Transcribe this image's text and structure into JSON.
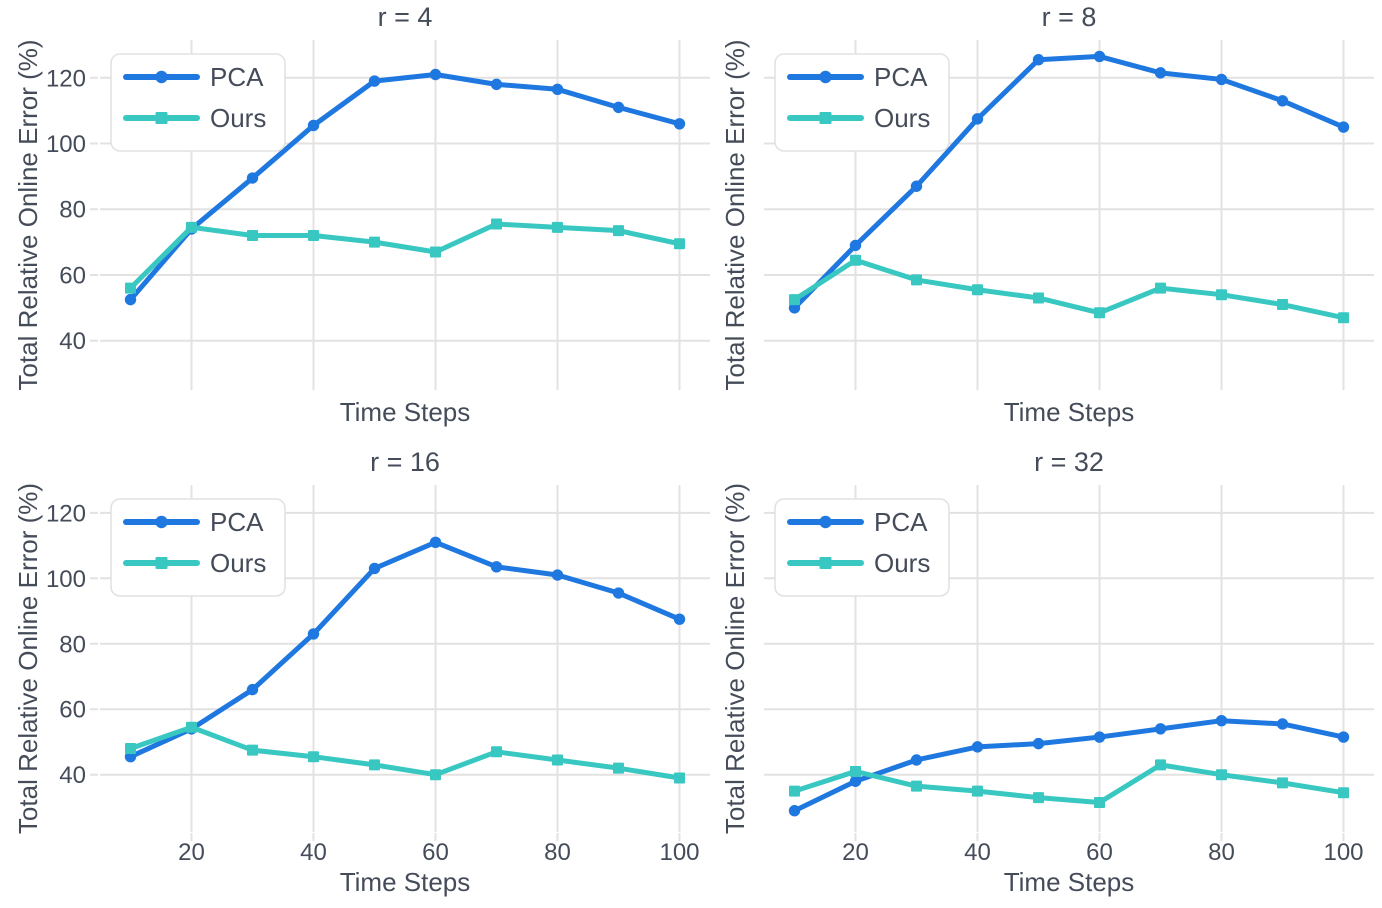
{
  "style": {
    "background": "#ffffff",
    "text_color": "#454c59",
    "grid_color": "#e4e2e0",
    "legend_border_color": "#e2e2e2",
    "pca_color": "#1f78e0",
    "ours_color": "#39c8c1"
  },
  "chart_data": [
    {
      "type": "line",
      "title": "r = 4",
      "xlabel": "Time Steps",
      "ylabel": "Total Relative Online Error (%)",
      "x": [
        10,
        20,
        30,
        40,
        50,
        60,
        70,
        80,
        90,
        100
      ],
      "series": [
        {
          "name": "PCA",
          "color": "#1f78e0",
          "marker": "circle",
          "values": [
            52.5,
            74,
            89.5,
            105.5,
            119,
            121,
            118,
            116.5,
            111,
            106
          ]
        },
        {
          "name": "Ours",
          "color": "#39c8c1",
          "marker": "square",
          "values": [
            56,
            74.5,
            72,
            72,
            70,
            67,
            75.5,
            74.5,
            73.5,
            69.5
          ]
        }
      ],
      "xticks": [
        20,
        40,
        60,
        80,
        100
      ],
      "yticks": [
        40,
        60,
        80,
        100,
        120
      ],
      "xlim": [
        5,
        105
      ],
      "ylim": [
        25,
        131.5
      ],
      "grid": true,
      "legend_position": "upper left",
      "show_xticklabels": false,
      "show_yticklabels": true
    },
    {
      "type": "line",
      "title": "r = 8",
      "xlabel": "Time Steps",
      "ylabel": "Total Relative Online Error (%)",
      "x": [
        10,
        20,
        30,
        40,
        50,
        60,
        70,
        80,
        90,
        100
      ],
      "series": [
        {
          "name": "PCA",
          "color": "#1f78e0",
          "marker": "circle",
          "values": [
            50,
            69,
            87,
            107.5,
            125.5,
            126.5,
            121.5,
            119.5,
            113,
            105
          ]
        },
        {
          "name": "Ours",
          "color": "#39c8c1",
          "marker": "square",
          "values": [
            52.5,
            64.5,
            58.5,
            55.5,
            53,
            48.5,
            56,
            54,
            51,
            47
          ]
        }
      ],
      "xticks": [
        20,
        40,
        60,
        80,
        100
      ],
      "yticks": [
        40,
        60,
        80,
        100,
        120
      ],
      "xlim": [
        5,
        105
      ],
      "ylim": [
        25,
        131.5
      ],
      "grid": true,
      "legend_position": "upper left",
      "show_xticklabels": false,
      "show_yticklabels": false
    },
    {
      "type": "line",
      "title": "r = 16",
      "xlabel": "Time Steps",
      "ylabel": "Total Relative Online Error (%)",
      "x": [
        10,
        20,
        30,
        40,
        50,
        60,
        70,
        80,
        90,
        100
      ],
      "series": [
        {
          "name": "PCA",
          "color": "#1f78e0",
          "marker": "circle",
          "values": [
            45.5,
            54,
            66,
            83,
            103,
            111,
            103.5,
            101,
            95.5,
            87.5
          ]
        },
        {
          "name": "Ours",
          "color": "#39c8c1",
          "marker": "square",
          "values": [
            48,
            54.5,
            47.5,
            45.5,
            43,
            40,
            47,
            44.5,
            42,
            39
          ]
        }
      ],
      "xticks": [
        20,
        40,
        60,
        80,
        100
      ],
      "yticks": [
        40,
        60,
        80,
        100,
        120
      ],
      "xlim": [
        5,
        105
      ],
      "ylim": [
        22.5,
        128.5
      ],
      "grid": true,
      "legend_position": "upper left",
      "show_xticklabels": true,
      "show_yticklabels": true
    },
    {
      "type": "line",
      "title": "r = 32",
      "xlabel": "Time Steps",
      "ylabel": "Total Relative Online Error (%)",
      "x": [
        10,
        20,
        30,
        40,
        50,
        60,
        70,
        80,
        90,
        100
      ],
      "series": [
        {
          "name": "PCA",
          "color": "#1f78e0",
          "marker": "circle",
          "values": [
            29,
            38,
            44.5,
            48.5,
            49.5,
            51.5,
            54,
            56.5,
            55.5,
            51.5
          ]
        },
        {
          "name": "Ours",
          "color": "#39c8c1",
          "marker": "square",
          "values": [
            35,
            41,
            36.5,
            35,
            33,
            31.5,
            43,
            40,
            37.5,
            34.5
          ]
        }
      ],
      "xticks": [
        20,
        40,
        60,
        80,
        100
      ],
      "yticks": [
        40,
        60,
        80,
        100,
        120
      ],
      "xlim": [
        5,
        105
      ],
      "ylim": [
        22.5,
        128.5
      ],
      "grid": true,
      "legend_position": "upper left",
      "show_xticklabels": true,
      "show_yticklabels": false
    }
  ]
}
